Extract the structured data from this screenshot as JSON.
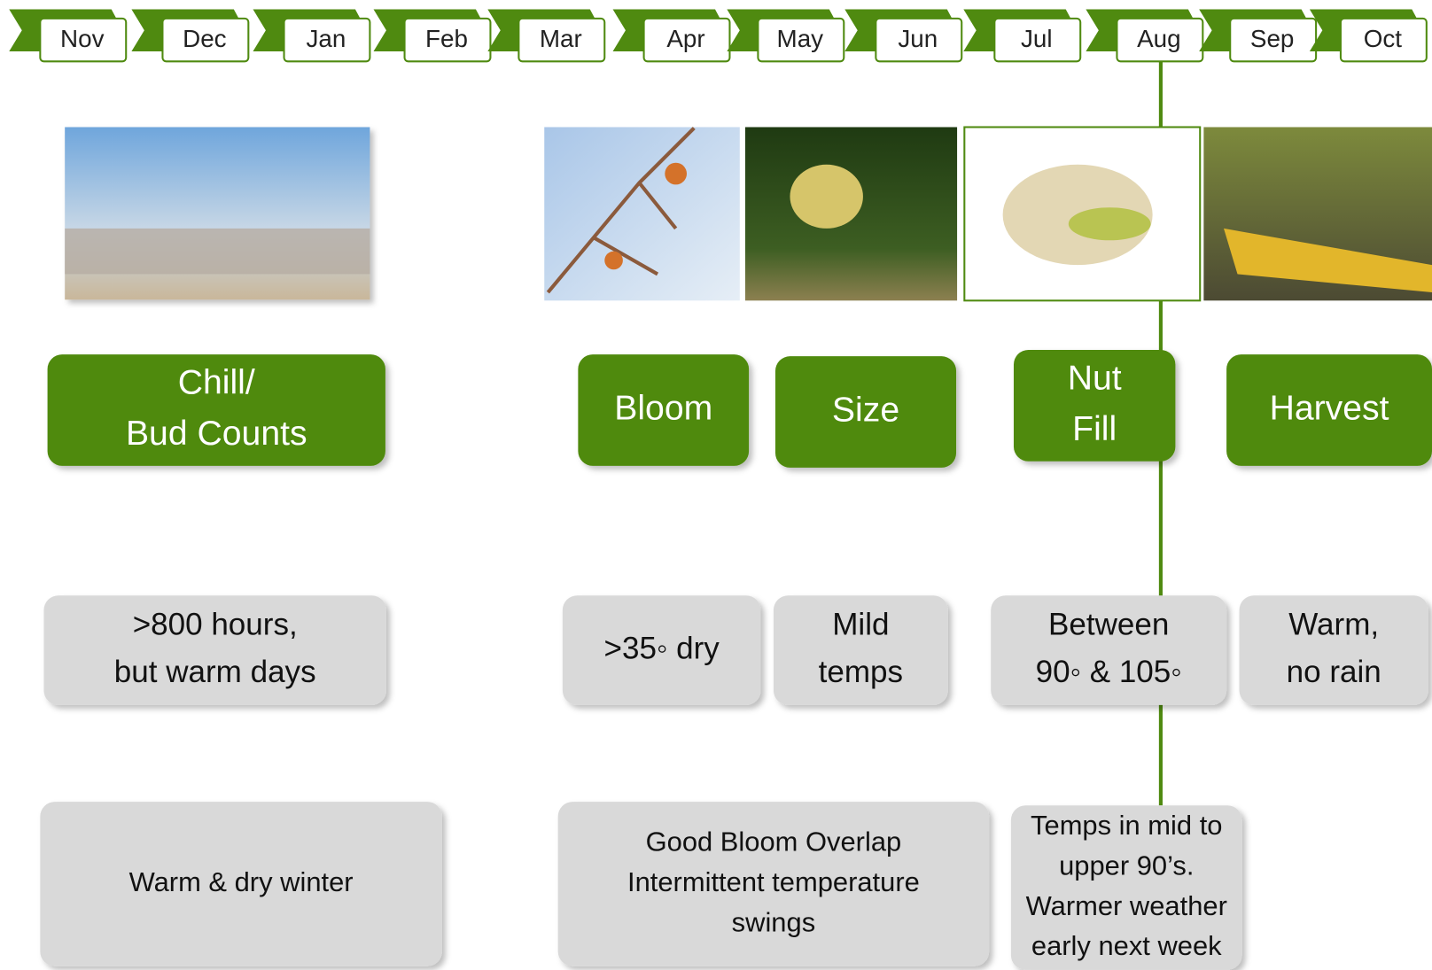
{
  "months": [
    "Nov",
    "Dec",
    "Jan",
    "Feb",
    "Mar",
    "Apr",
    "May",
    "Jun",
    "Jul",
    "Aug",
    "Sep",
    "Oct"
  ],
  "stages": [
    [
      "Chill/",
      "Bud Counts"
    ],
    [
      "Bloom"
    ],
    [
      "Size"
    ],
    [
      "Nut",
      "Fill"
    ],
    [
      "Harvest"
    ]
  ],
  "conditions": [
    [
      ">800 hours,",
      "but warm days"
    ],
    [
      ">35◦ dry"
    ],
    [
      "Mild",
      "temps"
    ],
    [
      "Between",
      "90◦ & 105◦"
    ],
    [
      "Warm,",
      "no rain"
    ]
  ],
  "notes": [
    [
      "Warm & dry winter"
    ],
    [
      "Good Bloom Overlap",
      "Intermittent temperature",
      "swings"
    ],
    [
      "Temps in mid to",
      "upper 90’s.",
      "Warmer weather",
      "early next week"
    ]
  ]
}
